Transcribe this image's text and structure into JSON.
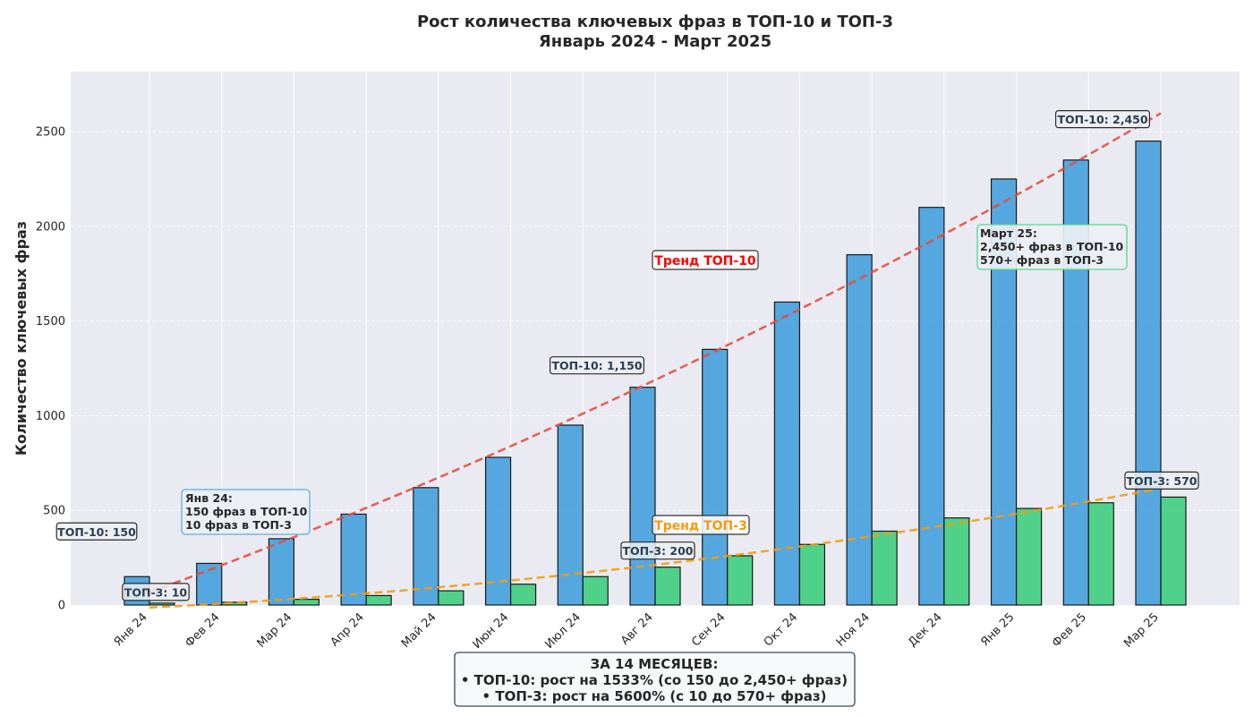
{
  "chart_data": {
    "type": "bar",
    "title": "Рост количества ключевых фраз в ТОП-10 и ТОП-3",
    "subtitle": "Январь 2024 - Март 2025",
    "xlabel": "",
    "ylabel": "Количество ключевых фраз",
    "ylim": [
      0,
      2817
    ],
    "yticks": [
      0,
      500,
      1000,
      1500,
      2000,
      2500
    ],
    "grid": true,
    "categories": [
      "Янв 24",
      "Фев 24",
      "Мар 24",
      "Апр 24",
      "Май 24",
      "Июн 24",
      "Июл 24",
      "Авг 24",
      "Сен 24",
      "Окт 24",
      "Ноя 24",
      "Дек 24",
      "Янв 25",
      "Фев 25",
      "Мар 25"
    ],
    "series": [
      {
        "name": "ТОП-10",
        "color": "#3498db",
        "values": [
          150,
          220,
          350,
          480,
          620,
          780,
          950,
          1150,
          1350,
          1600,
          1850,
          2100,
          2250,
          2350,
          2450
        ]
      },
      {
        "name": "ТОП-3",
        "color": "#2ecc71",
        "values": [
          10,
          15,
          30,
          50,
          75,
          110,
          150,
          200,
          260,
          320,
          390,
          460,
          510,
          540,
          570
        ]
      }
    ],
    "trends": [
      {
        "name": "Тренд ТОП-10",
        "color": "#e74c3c",
        "label_color": "#ff0000",
        "series": 0,
        "degree": 2
      },
      {
        "name": "Тренд ТОП-3",
        "color": "#f39c12",
        "label_color": "#f39c12",
        "series": 1,
        "degree": 2
      }
    ],
    "value_labels": [
      {
        "text": "ТОП-10: 150",
        "index": 0,
        "series": 0
      },
      {
        "text": "ТОП-3: 10",
        "index": 0,
        "series": 1
      },
      {
        "text": "ТОП-10: 1,150",
        "index": 7,
        "series": 0
      },
      {
        "text": "ТОП-3: 200",
        "index": 7,
        "series": 1
      },
      {
        "text": "ТОП-10: 2,450",
        "index": 14,
        "series": 0
      },
      {
        "text": "ТОП-3: 570",
        "index": 14,
        "series": 1
      }
    ],
    "annotations": [
      {
        "lines": [
          "Янв 24:",
          "150 фраз в ТОП-10",
          "10 фраз в ТОП-3"
        ],
        "border": "#3498db"
      },
      {
        "lines": [
          "Март 25:",
          "2,450+ фраз в ТОП-10",
          "570+ фраз в ТОП-3"
        ],
        "border": "#2ecc71"
      }
    ],
    "summary": {
      "lines": [
        "ЗА 14 МЕСЯЦЕВ:",
        "• ТОП-10: рост на 1533% (со 150 до 2,450+ фраз)",
        "• ТОП-3: рост на 5600% (с 10 до 570+ фраз)"
      ]
    }
  }
}
